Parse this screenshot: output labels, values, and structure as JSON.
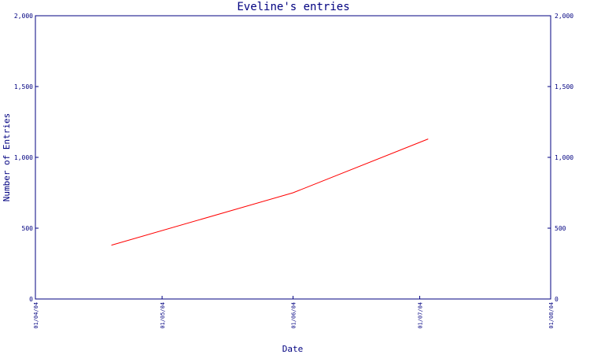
{
  "chart_data": {
    "type": "line",
    "title": "Eveline's entries",
    "xlabel": "Date",
    "ylabel": "Number of Entries",
    "ylim": [
      0,
      2000
    ],
    "xlim": [
      "2004-04-01",
      "2004-08-01"
    ],
    "yticks": [
      0,
      500,
      1000,
      1500,
      2000
    ],
    "ytick_labels": [
      "0",
      "500",
      "1,000",
      "1,500",
      "2,000"
    ],
    "ytick_labels_right": [
      "0",
      "500",
      "1,000",
      "1,500",
      "2,000"
    ],
    "xticks": [
      "2004-04-01",
      "2004-05-01",
      "2004-06-01",
      "2004-07-01",
      "2004-08-01"
    ],
    "xtick_labels": [
      "01/04/04",
      "01/05/04",
      "01/06/04",
      "01/07/04",
      "01/08/04"
    ],
    "grid": false,
    "colors": {
      "axes": "#000080",
      "line": "#ff0000",
      "background": "#ffffff"
    },
    "series": [
      {
        "x": [
          "2004-04-19",
          "2004-06-01",
          "2004-07-03"
        ],
        "values": [
          380,
          750,
          1130
        ]
      }
    ]
  }
}
